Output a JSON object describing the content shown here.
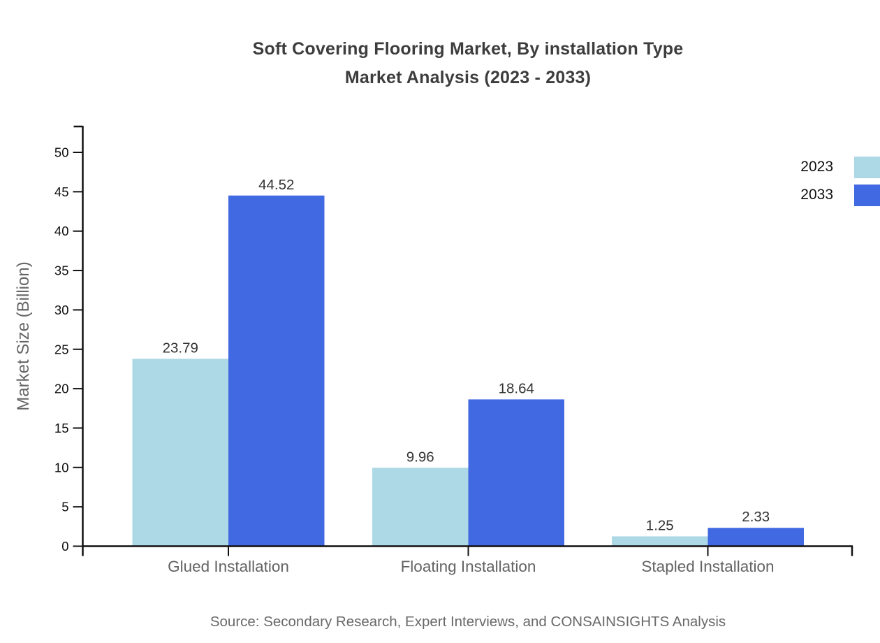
{
  "header": {
    "title_line1": "Soft Covering Flooring Market, By installation Type",
    "title_line2": "Market Analysis (2023 - 2033)"
  },
  "footer": {
    "source": "Source: Secondary Research, Expert Interviews, and CONSAINSIGHTS Analysis"
  },
  "legend": {
    "items": [
      {
        "label": "2023",
        "color": "#ADD8E6"
      },
      {
        "label": "2033",
        "color": "#4169E1"
      }
    ]
  },
  "chart_data": {
    "type": "bar",
    "title": "Soft Covering Flooring Market, By installation Type Market Analysis (2023 - 2033)",
    "categories": [
      "Glued Installation",
      "Floating Installation",
      "Stapled Installation"
    ],
    "series": [
      {
        "name": "2023",
        "color": "#ADD8E6",
        "values": [
          23.79,
          9.96,
          1.25
        ]
      },
      {
        "name": "2033",
        "color": "#4169E1",
        "values": [
          44.52,
          18.64,
          2.33
        ]
      }
    ],
    "ylabel": "Market Size (Billion)",
    "xlabel": "",
    "ylim": [
      0,
      53
    ],
    "y_ticks": [
      0,
      5,
      10,
      15,
      20,
      25,
      30,
      35,
      40,
      45,
      50
    ],
    "grid": false,
    "legend_position": "top-right",
    "value_labels_decimals": 2,
    "axis_color": "#111111",
    "tick_label_color": "#111111",
    "category_label_color": "#636363",
    "value_label_color": "#333333"
  }
}
